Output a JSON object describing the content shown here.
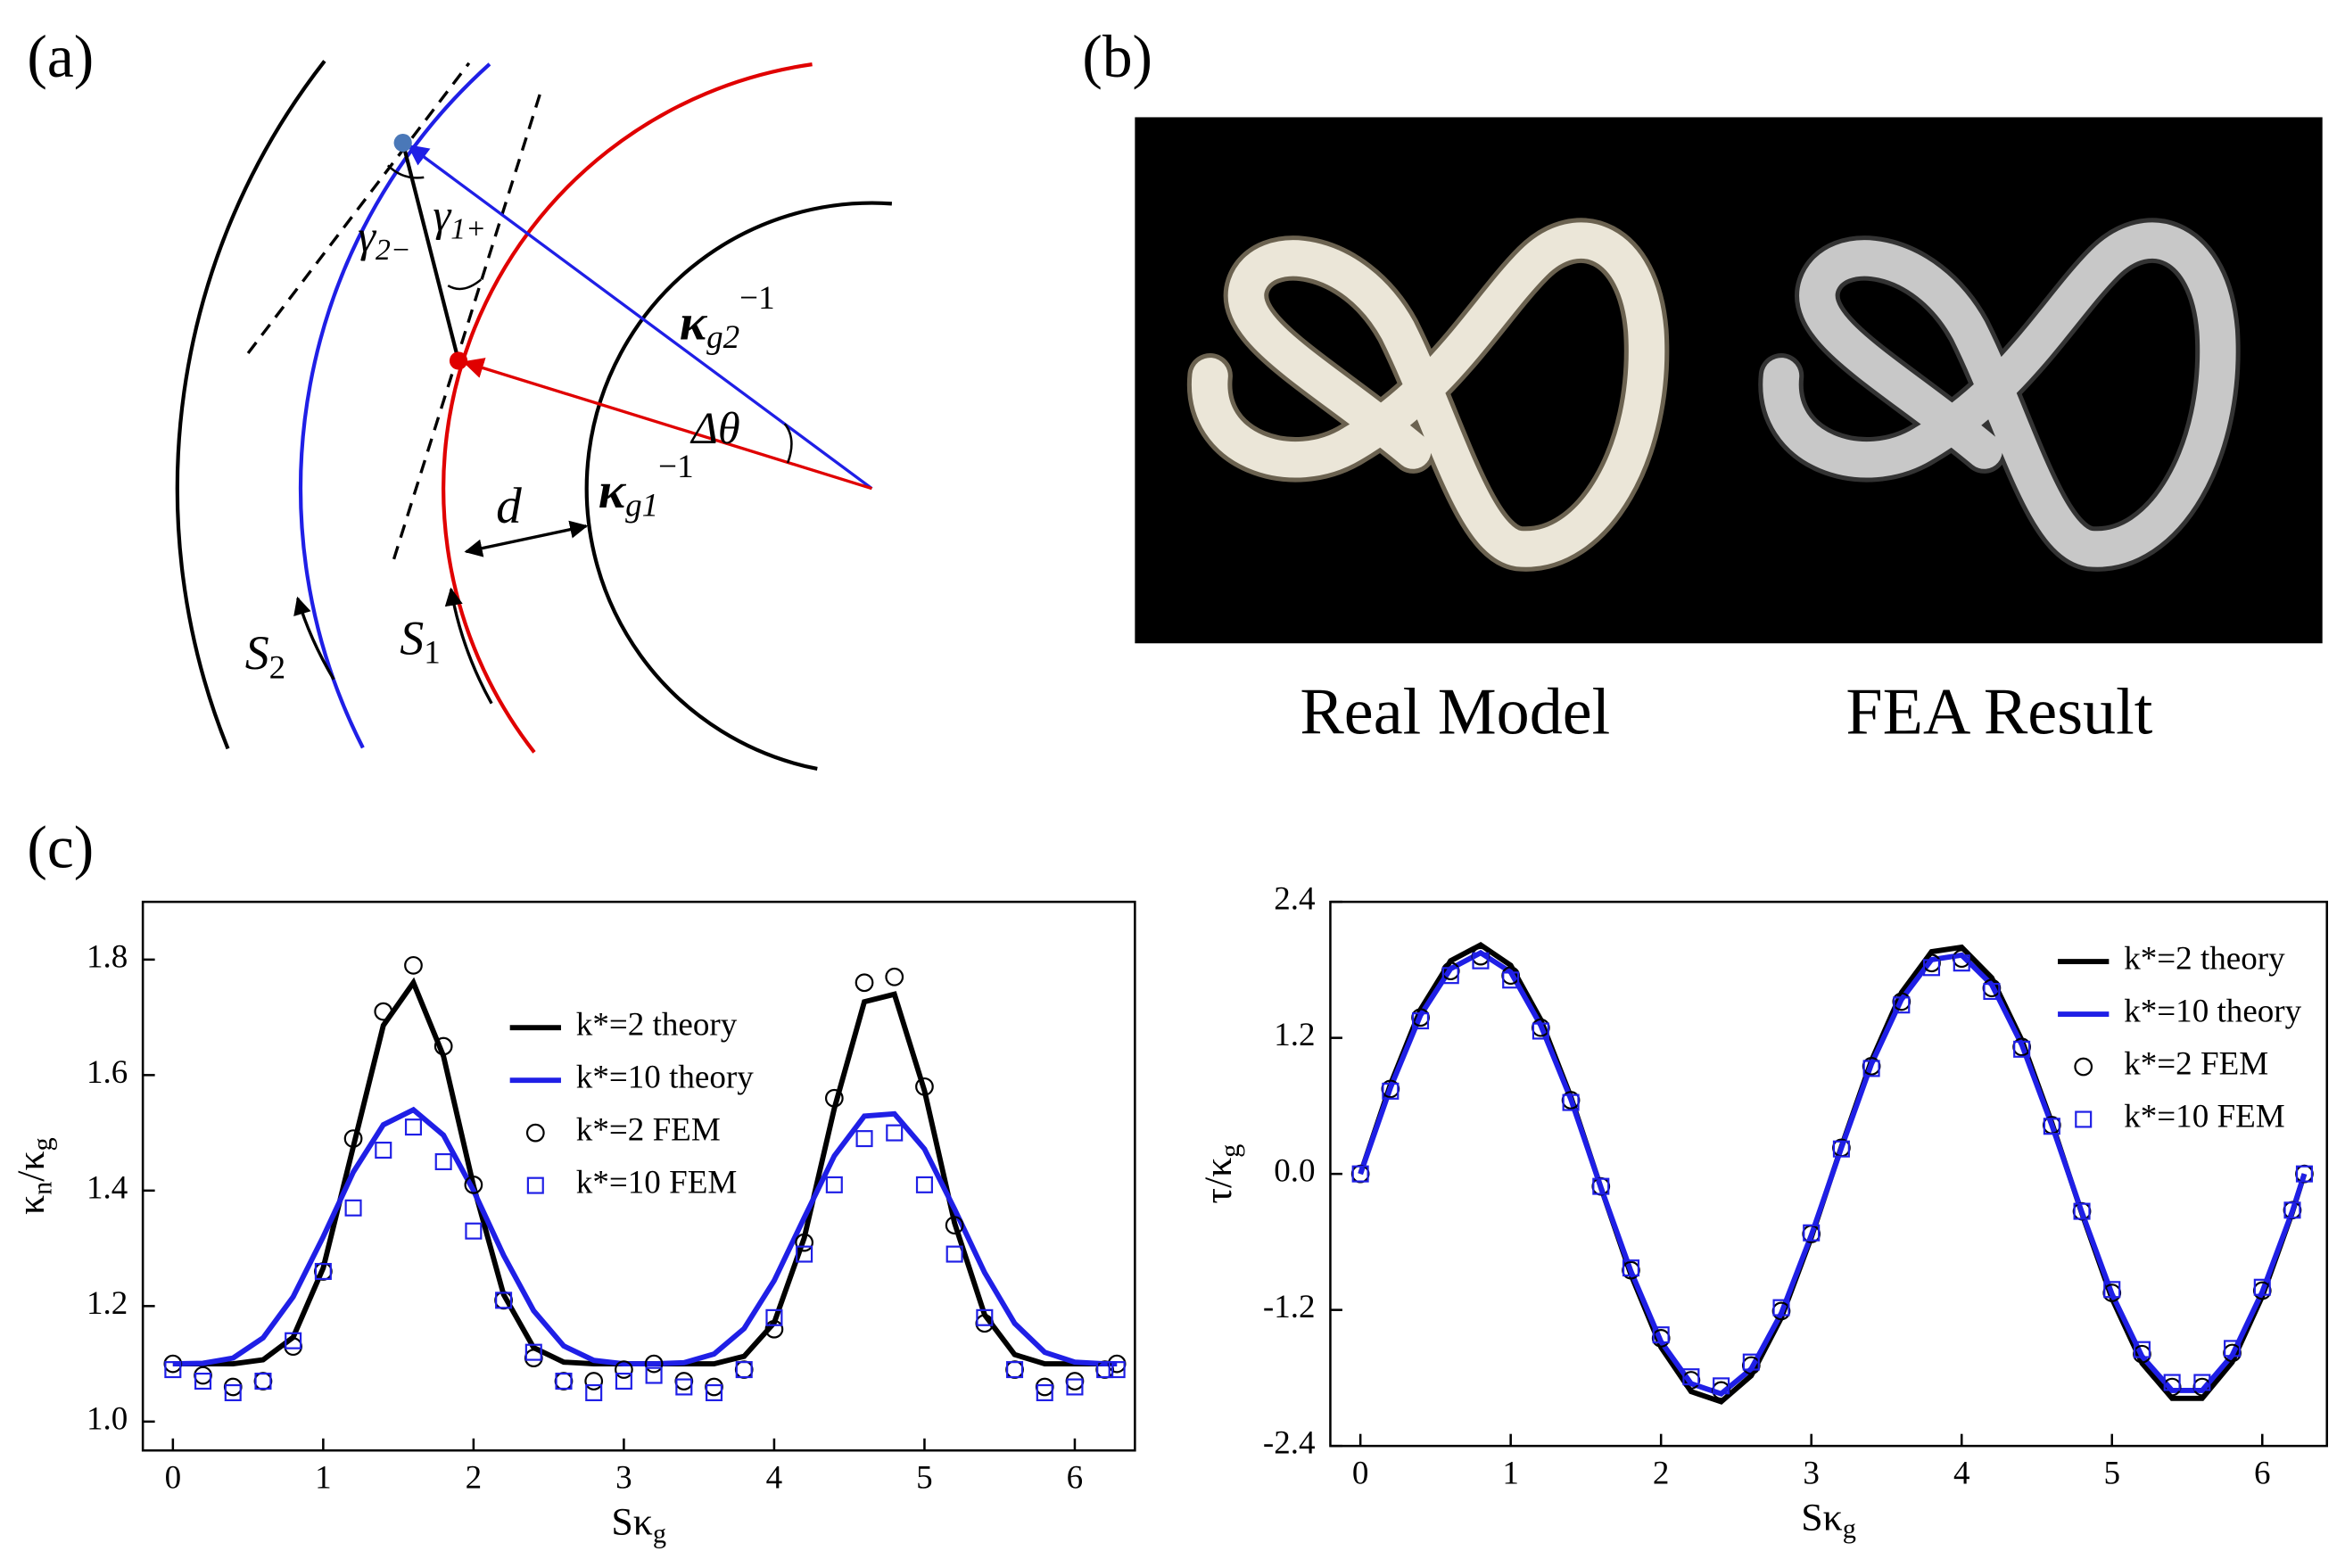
{
  "panel_a": {
    "label": "(a)",
    "gamma2": {
      "base": "γ",
      "sub": "2−"
    },
    "gamma1": {
      "base": "γ",
      "sub": "1+"
    },
    "kappa2": {
      "base": "κ",
      "sub": "g2",
      "sup": "−1"
    },
    "kappa1": {
      "base": "κ",
      "sub": "g1",
      "sup": "−1"
    },
    "dtheta": "Δθ",
    "d": "d",
    "s2": {
      "base": "S",
      "sub": "2"
    },
    "s1": {
      "base": "S",
      "sub": "1"
    }
  },
  "panel_b": {
    "label": "(b)",
    "left_caption": "Real Model",
    "right_caption": "FEA Result"
  },
  "panel_c": {
    "label": "(c)"
  },
  "chart_data": [
    {
      "type": "line",
      "xlabel": [
        "Sκ",
        "g"
      ],
      "ylabel": [
        "κ",
        "n",
        "/κ",
        "g"
      ],
      "xlim": [
        -0.2,
        6.4
      ],
      "xticks": [
        0,
        1,
        2,
        3,
        4,
        5,
        6
      ],
      "ylim": [
        0.95,
        1.9
      ],
      "yticks": [
        {
          "value": 1.0,
          "label": "1.0"
        },
        1.2,
        1.4,
        1.6,
        1.8
      ],
      "legend": "upper center",
      "x": [
        0,
        0.2,
        0.4,
        0.6,
        0.8,
        1.0,
        1.2,
        1.4,
        1.6,
        1.8,
        2.0,
        2.2,
        2.4,
        2.6,
        2.8,
        3.0,
        3.2,
        3.4,
        3.6,
        3.8,
        4.0,
        4.2,
        4.4,
        4.6,
        4.8,
        5.0,
        5.2,
        5.4,
        5.6,
        5.8,
        6.0,
        6.2,
        6.28
      ],
      "series": [
        {
          "name": "k*=2 theory",
          "color": "#000000",
          "marker": "none",
          "values": [
            1.1,
            1.1,
            1.1,
            1.107,
            1.146,
            1.266,
            1.476,
            1.686,
            1.76,
            1.633,
            1.408,
            1.22,
            1.128,
            1.103,
            1.1,
            1.1,
            1.1,
            1.1,
            1.1,
            1.113,
            1.171,
            1.318,
            1.542,
            1.727,
            1.74,
            1.573,
            1.344,
            1.185,
            1.116,
            1.1,
            1.1,
            1.1,
            1.1
          ]
        },
        {
          "name": "k*=10 theory",
          "color": "#1f1fe6",
          "marker": "none",
          "values": [
            1.1,
            1.101,
            1.11,
            1.145,
            1.216,
            1.32,
            1.432,
            1.514,
            1.54,
            1.496,
            1.4,
            1.288,
            1.192,
            1.131,
            1.106,
            1.1,
            1.1,
            1.102,
            1.117,
            1.161,
            1.244,
            1.353,
            1.46,
            1.529,
            1.533,
            1.472,
            1.368,
            1.258,
            1.17,
            1.12,
            1.103,
            1.1,
            1.1
          ]
        },
        {
          "name": "k*=2 FEM",
          "color": "#000000",
          "marker": "circle",
          "values": [
            1.1,
            1.08,
            1.06,
            1.07,
            1.13,
            1.26,
            1.49,
            1.71,
            1.79,
            1.65,
            1.41,
            1.21,
            1.11,
            1.07,
            1.07,
            1.09,
            1.1,
            1.07,
            1.06,
            1.09,
            1.16,
            1.31,
            1.56,
            1.76,
            1.77,
            1.58,
            1.34,
            1.17,
            1.09,
            1.06,
            1.07,
            1.09,
            1.1
          ]
        },
        {
          "name": "k*=10 FEM",
          "color": "#1f1fe6",
          "marker": "square",
          "values": [
            1.09,
            1.07,
            1.05,
            1.07,
            1.14,
            1.26,
            1.37,
            1.47,
            1.51,
            1.45,
            1.33,
            1.21,
            1.12,
            1.07,
            1.05,
            1.07,
            1.08,
            1.06,
            1.05,
            1.09,
            1.18,
            1.29,
            1.41,
            1.49,
            1.5,
            1.41,
            1.29,
            1.18,
            1.09,
            1.05,
            1.06,
            1.09,
            1.09
          ]
        }
      ]
    },
    {
      "type": "line",
      "xlabel": [
        "Sκ",
        "g"
      ],
      "ylabel": [
        "τ/κ",
        "g"
      ],
      "xlim": [
        -0.2,
        6.43
      ],
      "xticks": [
        0,
        1,
        2,
        3,
        4,
        5,
        6
      ],
      "ylim": [
        -2.4,
        2.4
      ],
      "yticks": [
        -2.4,
        -1.2,
        {
          "value": 0,
          "label": "0.0"
        },
        1.2,
        2.4
      ],
      "legend": "upper right",
      "x": [
        0,
        0.2,
        0.4,
        0.6,
        0.8,
        1.0,
        1.2,
        1.4,
        1.6,
        1.8,
        2.0,
        2.2,
        2.4,
        2.6,
        2.8,
        3.0,
        3.2,
        3.4,
        3.6,
        3.8,
        4.0,
        4.2,
        4.4,
        4.6,
        4.8,
        5.0,
        5.2,
        5.4,
        5.6,
        5.8,
        6.0,
        6.2,
        6.28
      ],
      "series": [
        {
          "name": "k*=2 theory",
          "color": "#000000",
          "marker": "none",
          "values": [
            0,
            0.79,
            1.45,
            1.88,
            2.02,
            1.84,
            1.36,
            0.68,
            -0.12,
            -0.89,
            -1.53,
            -1.92,
            -2.01,
            -1.78,
            -1.27,
            -0.56,
            0.24,
            1.0,
            1.6,
            1.96,
            2.0,
            1.73,
            1.18,
            0.45,
            -0.35,
            -1.1,
            -1.67,
            -1.98,
            -1.98,
            -1.66,
            -1.08,
            -0.34,
            0
          ]
        },
        {
          "name": "k*=10 theory",
          "color": "#1f1fe6",
          "marker": "none",
          "values": [
            0,
            0.76,
            1.4,
            1.81,
            1.95,
            1.78,
            1.31,
            0.66,
            -0.12,
            -0.86,
            -1.48,
            -1.85,
            -1.94,
            -1.72,
            -1.23,
            -0.54,
            0.23,
            0.97,
            1.54,
            1.89,
            1.93,
            1.67,
            1.14,
            0.43,
            -0.34,
            -1.06,
            -1.61,
            -1.91,
            -1.91,
            -1.6,
            -1.04,
            -0.33,
            0
          ]
        },
        {
          "name": "k*=2 FEM",
          "color": "#000000",
          "marker": "circle",
          "values": [
            0,
            0.75,
            1.38,
            1.79,
            1.92,
            1.75,
            1.29,
            0.65,
            -0.11,
            -0.85,
            -1.45,
            -1.82,
            -1.91,
            -1.69,
            -1.21,
            -0.53,
            0.23,
            0.95,
            1.52,
            1.86,
            1.9,
            1.64,
            1.12,
            0.43,
            -0.33,
            -1.05,
            -1.59,
            -1.88,
            -1.88,
            -1.58,
            -1.03,
            -0.32,
            0
          ]
        },
        {
          "name": "k*=10 FEM",
          "color": "#1f1fe6",
          "marker": "square",
          "values": [
            0,
            0.73,
            1.35,
            1.75,
            1.88,
            1.71,
            1.26,
            0.63,
            -0.11,
            -0.83,
            -1.42,
            -1.79,
            -1.87,
            -1.66,
            -1.18,
            -0.52,
            0.22,
            0.93,
            1.49,
            1.82,
            1.86,
            1.61,
            1.1,
            0.42,
            -0.33,
            -1.02,
            -1.55,
            -1.84,
            -1.84,
            -1.54,
            -1.0,
            -0.32,
            0
          ]
        }
      ]
    }
  ]
}
